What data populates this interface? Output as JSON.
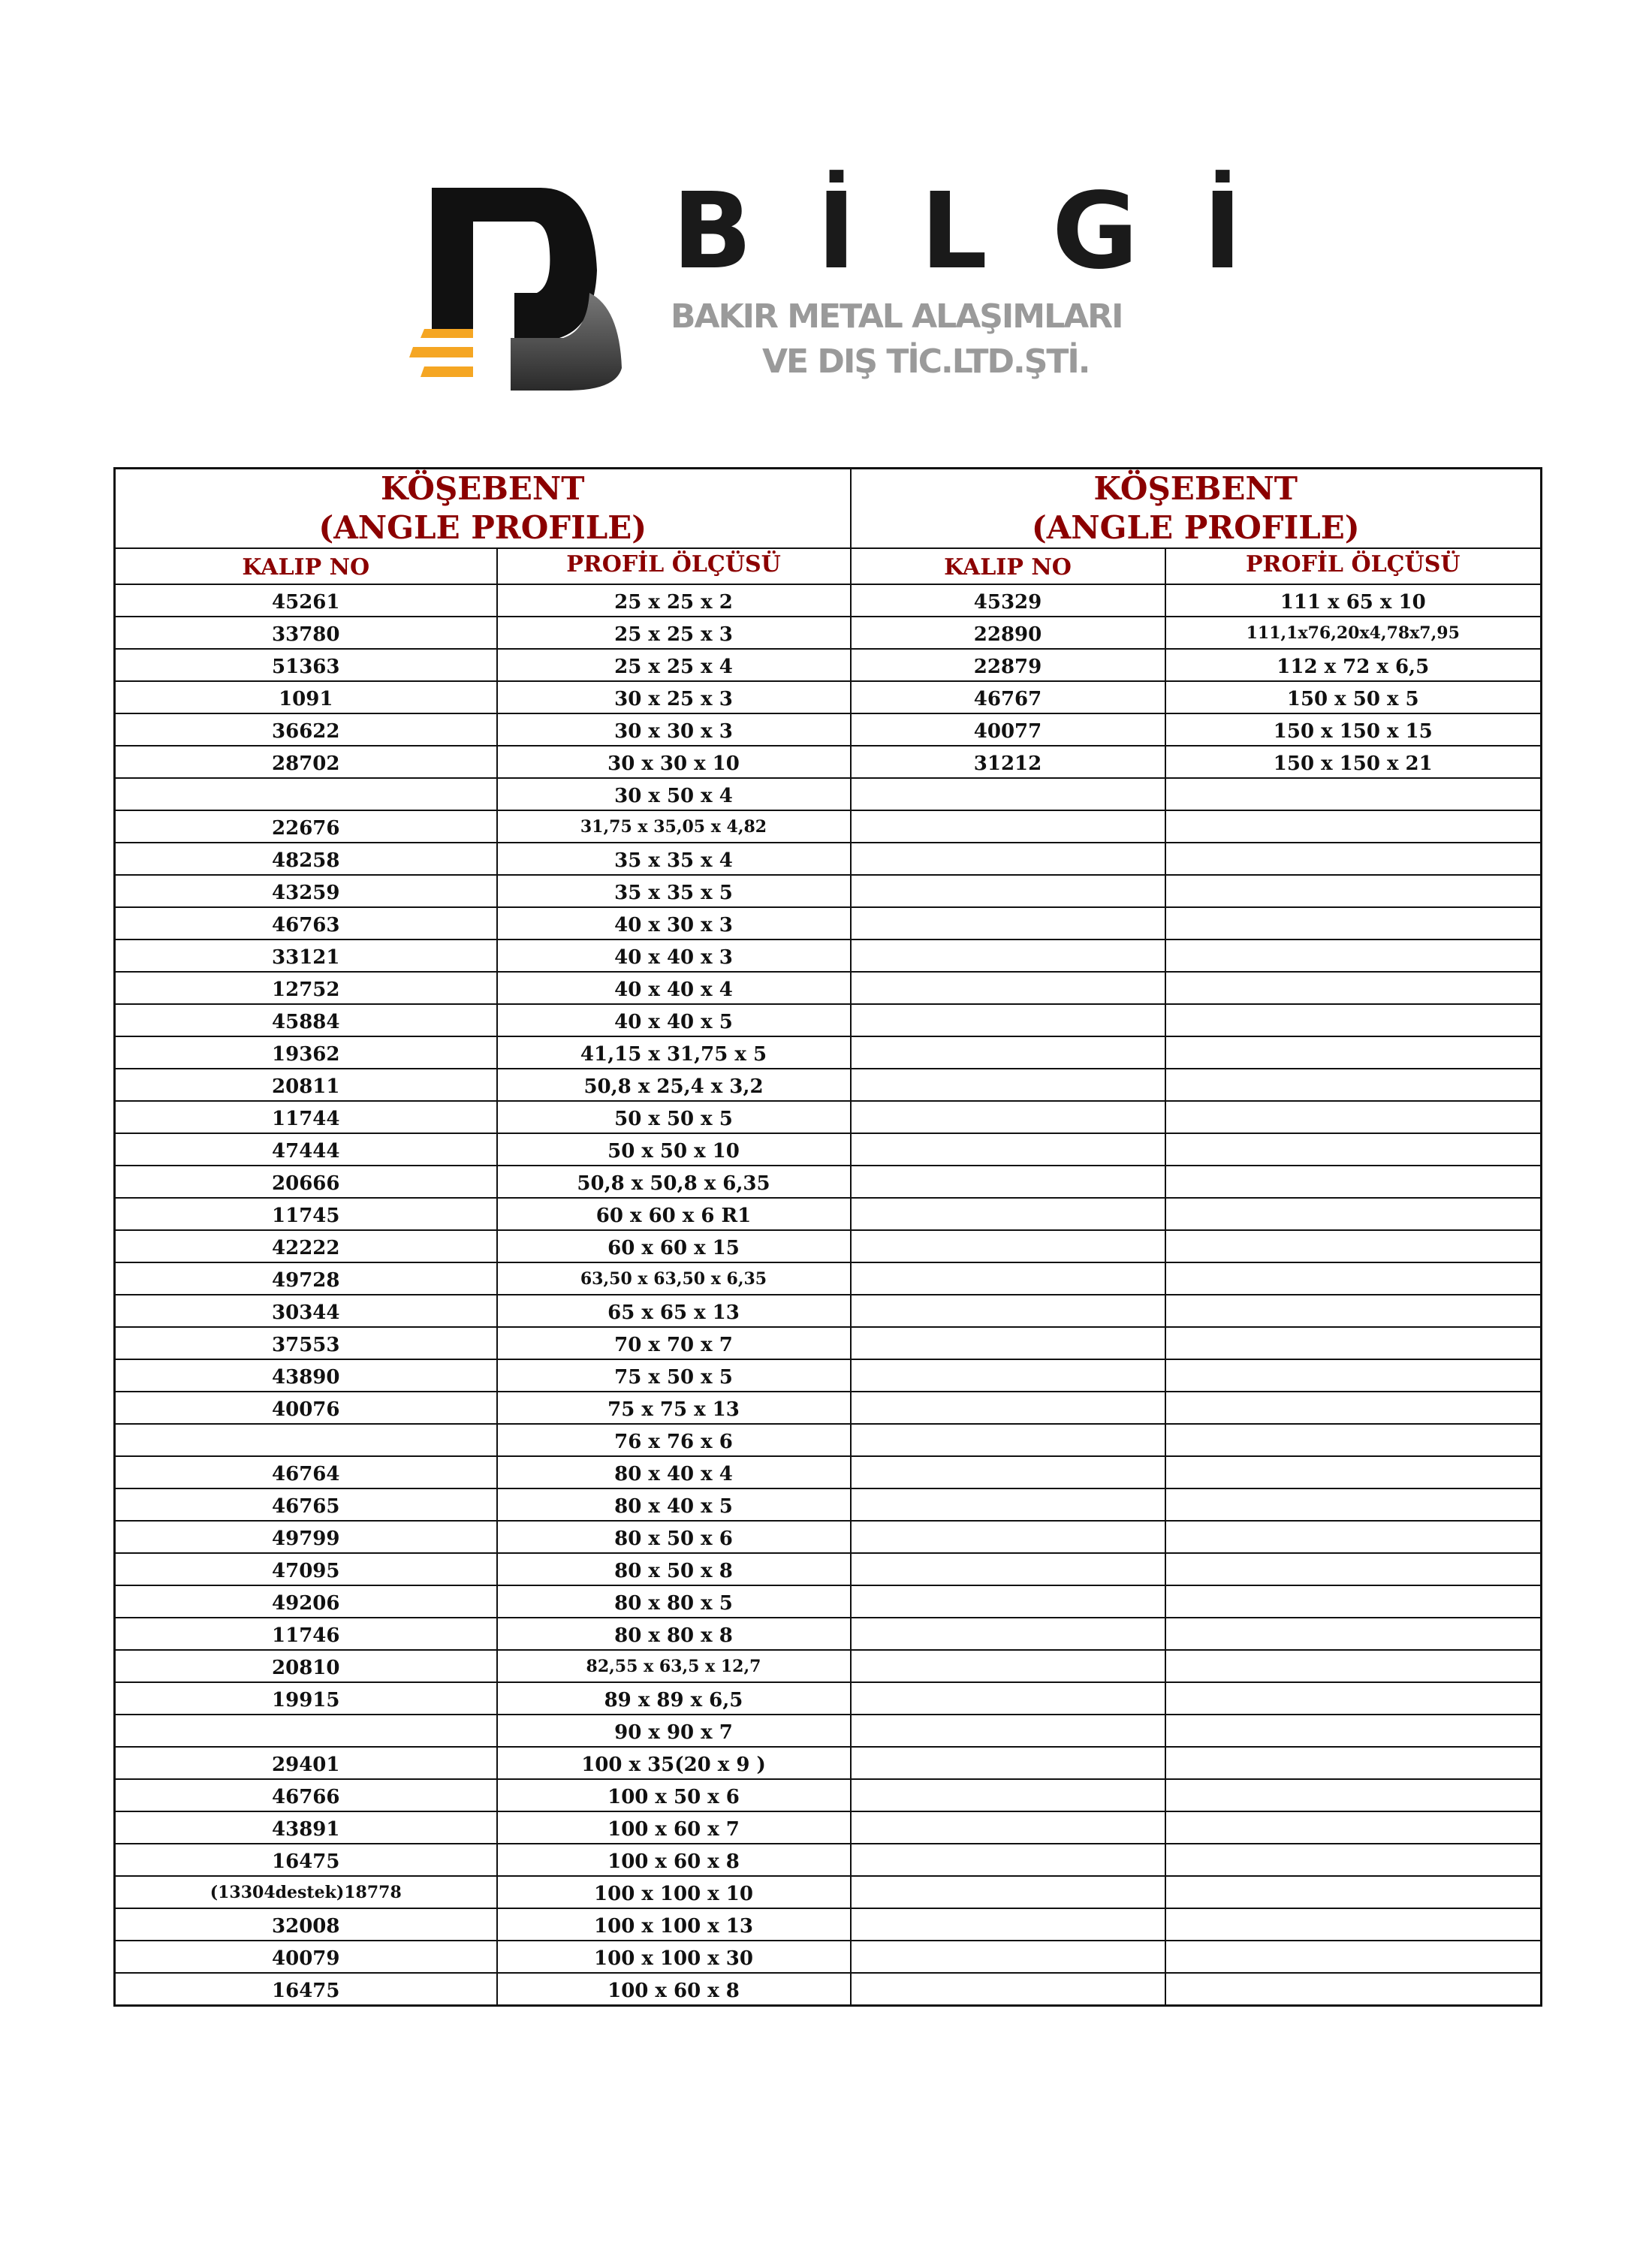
{
  "logo": {
    "brand": "BİLGİ",
    "subtitle_line1": "BAKIR METAL ALAŞIMLARI",
    "subtitle_line2": "VE DIŞ TİC.LTD.ŞTİ.",
    "colors": {
      "dark": "#111111",
      "gray": "#555555",
      "orange": "#f5a623",
      "text_gray": "#9a9a9a"
    }
  },
  "colors": {
    "header_red": "#8b0000"
  },
  "left_table": {
    "title_line1": "KÖŞEBENT",
    "title_line2": "(ANGLE PROFILE)",
    "col_kalip": "KALIP NO",
    "col_profil": "PROFİL ÖLÇÜSÜ",
    "rows": [
      [
        "45261",
        "25 x 25 x 2"
      ],
      [
        "33780",
        "25 x 25 x 3"
      ],
      [
        "51363",
        "25 x 25 x 4"
      ],
      [
        "1091",
        "30 x 25 x 3"
      ],
      [
        "36622",
        "30 x 30 x 3"
      ],
      [
        "28702",
        "30 x 30 x 10"
      ],
      [
        "",
        "30 x 50 x 4"
      ],
      [
        "22676",
        "31,75 x 35,05 x 4,82"
      ],
      [
        "48258",
        "35 x 35 x 4"
      ],
      [
        "43259",
        "35 x 35 x 5"
      ],
      [
        "46763",
        "40 x 30 x 3"
      ],
      [
        "33121",
        "40 x 40 x 3"
      ],
      [
        "12752",
        "40 x 40 x 4"
      ],
      [
        "45884",
        "40 x 40 x 5"
      ],
      [
        "19362",
        "41,15 x 31,75 x 5"
      ],
      [
        "20811",
        "50,8 x 25,4 x 3,2"
      ],
      [
        "11744",
        "50 x 50 x 5"
      ],
      [
        "47444",
        "50 x 50 x 10"
      ],
      [
        "20666",
        "50,8 x 50,8 x 6,35"
      ],
      [
        "11745",
        "60 x 60 x 6 R1"
      ],
      [
        "42222",
        "60 x 60 x 15"
      ],
      [
        "49728",
        "63,50 x 63,50 x 6,35"
      ],
      [
        "30344",
        "65 x 65 x 13"
      ],
      [
        "37553",
        "70 x 70 x 7"
      ],
      [
        "43890",
        "75 x 50 x 5"
      ],
      [
        "40076",
        "75 x 75 x 13"
      ],
      [
        "",
        "76 x 76 x 6"
      ],
      [
        "46764",
        "80 x 40 x 4"
      ],
      [
        "46765",
        "80 x 40 x 5"
      ],
      [
        "49799",
        "80 x 50 x 6"
      ],
      [
        "47095",
        "80 x 50 x 8"
      ],
      [
        "49206",
        "80 x 80 x 5"
      ],
      [
        "11746",
        "80 x 80 x 8"
      ],
      [
        "20810",
        "82,55 x 63,5 x 12,7"
      ],
      [
        "19915",
        "89 x 89 x 6,5"
      ],
      [
        "",
        "90 x 90 x 7"
      ],
      [
        "29401",
        "100 x 35(20 x 9 )"
      ],
      [
        "46766",
        "100 x 50 x 6"
      ],
      [
        "43891",
        "100 x 60 x 7"
      ],
      [
        "16475",
        "100 x 60 x 8"
      ],
      [
        "(13304destek)18778",
        "100 x 100 x 10"
      ],
      [
        "32008",
        "100 x 100 x 13"
      ],
      [
        "40079",
        "100 x 100 x 30"
      ],
      [
        "16475",
        "100 x 60 x 8"
      ]
    ]
  },
  "right_table": {
    "title_line1": "KÖŞEBENT",
    "title_line2": "(ANGLE PROFILE)",
    "col_kalip": "KALIP NO",
    "col_profil": "PROFİL ÖLÇÜSÜ",
    "rows": [
      [
        "45329",
        "111 x 65 x 10"
      ],
      [
        "22890",
        "111,1x76,20x4,78x7,95"
      ],
      [
        "22879",
        "112 x 72 x 6,5"
      ],
      [
        "46767",
        "150 x 50 x 5"
      ],
      [
        "40077",
        "150 x 150 x 15"
      ],
      [
        "31212",
        "150 x 150 x 21"
      ]
    ]
  }
}
